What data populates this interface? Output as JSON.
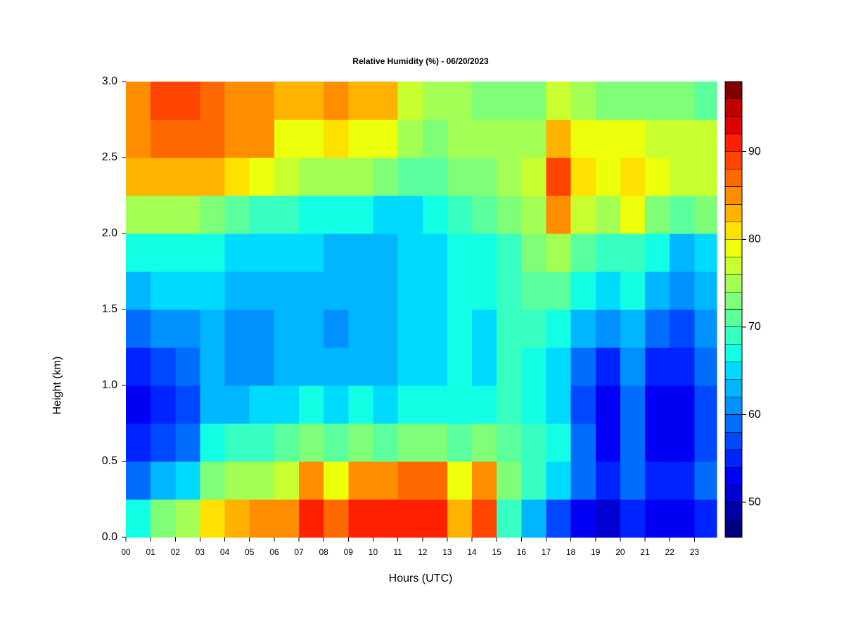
{
  "chart_data": {
    "type": "heatmap",
    "title": "Relative Humidity (%) - 06/20/2023",
    "x_label": "Hours (UTC)",
    "y_label": "Height (km)",
    "xlim": [
      0,
      23.9
    ],
    "ylim": [
      0,
      3
    ],
    "xticks": [
      {
        "value": 0,
        "label": "00"
      },
      {
        "value": 1,
        "label": "01"
      },
      {
        "value": 2,
        "label": "02"
      },
      {
        "value": 3,
        "label": "03"
      },
      {
        "value": 4,
        "label": "04"
      },
      {
        "value": 5,
        "label": "05"
      },
      {
        "value": 6,
        "label": "06"
      },
      {
        "value": 7,
        "label": "07"
      },
      {
        "value": 8,
        "label": "08"
      },
      {
        "value": 9,
        "label": "09"
      },
      {
        "value": 10,
        "label": "10"
      },
      {
        "value": 11,
        "label": "11"
      },
      {
        "value": 12,
        "label": "12"
      },
      {
        "value": 13,
        "label": "13"
      },
      {
        "value": 14,
        "label": "14"
      },
      {
        "value": 15,
        "label": "15"
      },
      {
        "value": 16,
        "label": "16"
      },
      {
        "value": 17,
        "label": "17"
      },
      {
        "value": 18,
        "label": "18"
      },
      {
        "value": 19,
        "label": "19"
      },
      {
        "value": 20,
        "label": "20"
      },
      {
        "value": 21,
        "label": "21"
      },
      {
        "value": 22,
        "label": "22"
      },
      {
        "value": 23,
        "label": "23"
      }
    ],
    "yticks": [
      {
        "value": 0,
        "label": "0.0"
      },
      0.5,
      {
        "value": 1,
        "label": "1.0"
      },
      1.5,
      {
        "value": 2,
        "label": "2.0"
      },
      2.5,
      {
        "value": 3,
        "label": "3.0"
      }
    ],
    "x": [
      0.5,
      1.5,
      2.5,
      3.5,
      4.5,
      5.5,
      6.5,
      7.5,
      8.5,
      9.5,
      10.5,
      11.5,
      12.5,
      13.5,
      14.5,
      15.5,
      16.5,
      17.5,
      18.5,
      19.5,
      20.5,
      21.5,
      22.5,
      23.5
    ],
    "y": [
      0.125,
      0.375,
      0.625,
      0.875,
      1.125,
      1.375,
      1.625,
      1.875,
      2.125,
      2.375,
      2.625,
      2.875
    ],
    "z": [
      [
        66,
        72,
        75,
        80,
        82,
        84,
        85,
        90,
        86,
        90,
        90,
        90,
        90,
        82,
        88,
        68,
        62,
        56,
        52,
        50,
        55,
        52,
        52,
        55
      ],
      [
        58,
        62,
        64,
        72,
        74,
        74,
        76,
        84,
        78,
        84,
        84,
        86,
        86,
        78,
        84,
        72,
        68,
        64,
        58,
        54,
        58,
        54,
        55,
        58
      ],
      [
        54,
        56,
        58,
        66,
        68,
        68,
        70,
        72,
        70,
        72,
        70,
        72,
        72,
        70,
        72,
        70,
        68,
        66,
        58,
        52,
        58,
        52,
        52,
        56
      ],
      [
        52,
        54,
        56,
        62,
        62,
        64,
        64,
        66,
        64,
        66,
        64,
        66,
        66,
        66,
        66,
        68,
        66,
        64,
        56,
        52,
        58,
        52,
        52,
        56
      ],
      [
        55,
        56,
        58,
        62,
        60,
        60,
        62,
        62,
        62,
        62,
        62,
        64,
        64,
        66,
        64,
        68,
        66,
        64,
        58,
        54,
        60,
        54,
        54,
        58
      ],
      [
        58,
        60,
        60,
        62,
        60,
        60,
        62,
        62,
        60,
        62,
        62,
        64,
        64,
        66,
        64,
        68,
        68,
        66,
        62,
        60,
        62,
        58,
        56,
        60
      ],
      [
        62,
        64,
        64,
        64,
        62,
        62,
        62,
        62,
        62,
        62,
        62,
        64,
        64,
        66,
        66,
        68,
        70,
        70,
        66,
        64,
        66,
        62,
        60,
        62
      ],
      [
        66,
        66,
        66,
        66,
        64,
        64,
        64,
        64,
        62,
        62,
        62,
        64,
        64,
        66,
        66,
        68,
        72,
        74,
        70,
        68,
        68,
        66,
        62,
        64
      ],
      [
        74,
        74,
        74,
        72,
        70,
        68,
        68,
        66,
        66,
        66,
        64,
        64,
        66,
        68,
        70,
        72,
        74,
        84,
        76,
        74,
        78,
        72,
        70,
        72
      ],
      [
        82,
        82,
        82,
        82,
        80,
        78,
        76,
        74,
        74,
        74,
        72,
        70,
        70,
        72,
        72,
        74,
        76,
        88,
        80,
        78,
        80,
        78,
        76,
        76
      ],
      [
        84,
        86,
        86,
        86,
        84,
        84,
        78,
        78,
        80,
        78,
        78,
        74,
        72,
        74,
        74,
        74,
        74,
        82,
        78,
        78,
        78,
        76,
        76,
        76
      ],
      [
        84,
        88,
        88,
        86,
        84,
        84,
        82,
        82,
        84,
        82,
        82,
        76,
        74,
        74,
        72,
        72,
        72,
        76,
        74,
        72,
        72,
        72,
        72,
        70
      ]
    ],
    "colorbar": {
      "levels": [
        46,
        48,
        50,
        52,
        54,
        56,
        58,
        60,
        62,
        64,
        66,
        68,
        70,
        72,
        74,
        76,
        78,
        80,
        82,
        84,
        86,
        88,
        90,
        92,
        94,
        96,
        98
      ],
      "colors": [
        "#00007F",
        "#0000A8",
        "#0000D0",
        "#0000F5",
        "#0024FF",
        "#0048FF",
        "#006DFF",
        "#0091FF",
        "#00B6FF",
        "#00DAFF",
        "#12FFE5",
        "#36FFC1",
        "#5BFF9C",
        "#7FFF78",
        "#A3FF54",
        "#C8FF2F",
        "#ECFF0B",
        "#FFE100",
        "#FFB200",
        "#FF8D00",
        "#FF6900",
        "#FF4400",
        "#FF2000",
        "#E00000",
        "#C00000",
        "#800000"
      ],
      "ticks": [
        50,
        60,
        70,
        80,
        90
      ]
    }
  }
}
